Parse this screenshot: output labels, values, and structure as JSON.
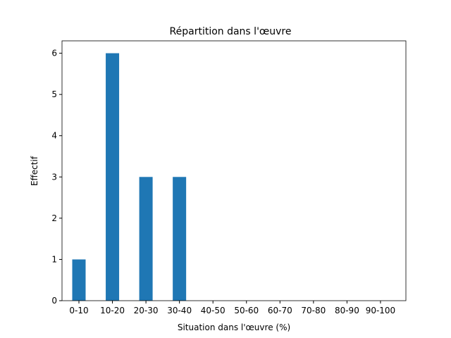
{
  "chart_data": {
    "type": "bar",
    "title": "Répartition dans l'œuvre",
    "x_label": "Situation dans l'œuvre (%)",
    "y_label": "Effectif",
    "categories": [
      "0-10",
      "10-20",
      "20-30",
      "30-40",
      "40-50",
      "50-60",
      "60-70",
      "70-80",
      "80-90",
      "90-100"
    ],
    "values": [
      1,
      6,
      3,
      3,
      0,
      0,
      0,
      0,
      0,
      0
    ],
    "color": "#1f77b4",
    "ylim": [
      0,
      6.3
    ],
    "yticks": [
      0,
      1,
      2,
      3,
      4,
      5,
      6
    ],
    "grid": false
  }
}
